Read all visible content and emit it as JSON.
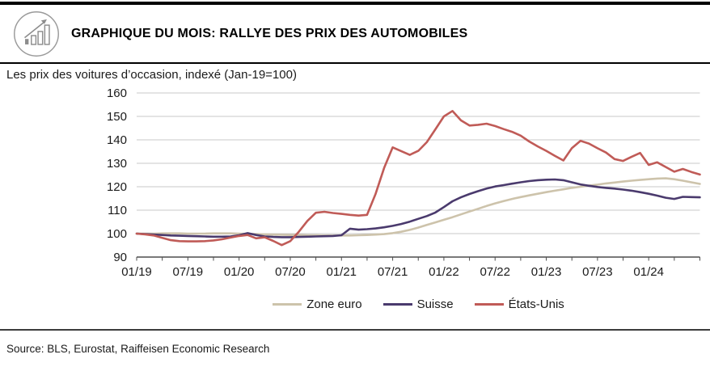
{
  "header": {
    "title": "GRAPHIQUE DU MOIS: RALLYE DES PRIX DES AUTOMOBILES",
    "icon": "bar-chart-rising-arrow"
  },
  "footer": {
    "source": "Source: BLS, Eurostat, Raiffeisen Economic Research"
  },
  "chart_data": {
    "type": "line",
    "title": "Les prix des voitures d’occasion, indexé (Jan-19=100)",
    "x_start": "01/19",
    "x_end": "07/24",
    "x_frequency": "monthly",
    "x_tick_labels": [
      "01/19",
      "07/19",
      "01/20",
      "07/20",
      "01/21",
      "07/21",
      "01/22",
      "07/22",
      "01/23",
      "07/23",
      "01/24"
    ],
    "ylim": [
      90,
      160
    ],
    "y_ticks": [
      90,
      100,
      110,
      120,
      130,
      140,
      150,
      160
    ],
    "grid": "horizontal",
    "legend_position": "bottom",
    "axis_color": "#4d4d4d",
    "grid_color": "#c9c9c9",
    "series": [
      {
        "name": "Zone euro",
        "color": "#cdc3ab",
        "values": [
          100,
          100,
          100,
          100.1,
          100.1,
          100.1,
          100,
          100,
          100,
          100.1,
          100.1,
          100.1,
          100,
          99.9,
          99.8,
          99.7,
          99.6,
          99.5,
          99.4,
          99.4,
          99.3,
          99.3,
          99.2,
          99.2,
          99.2,
          99.2,
          99.3,
          99.4,
          99.6,
          99.8,
          100.2,
          100.8,
          101.6,
          102.6,
          103.7,
          104.8,
          105.9,
          107,
          108.2,
          109.4,
          110.6,
          111.8,
          112.9,
          113.9,
          114.8,
          115.6,
          116.3,
          117,
          117.7,
          118.3,
          118.9,
          119.5,
          120,
          120.5,
          120.9,
          121.4,
          121.8,
          122.2,
          122.6,
          122.9,
          123.2,
          123.5,
          123.6,
          123.2,
          122.6,
          121.9,
          121.2
        ]
      },
      {
        "name": "Suisse",
        "color": "#4a3a6d",
        "values": [
          100,
          99.8,
          99.6,
          99.4,
          99.2,
          99.1,
          99,
          98.9,
          98.8,
          98.7,
          98.7,
          98.8,
          99.3,
          100.2,
          99.4,
          98.8,
          98.6,
          98.5,
          98.5,
          98.6,
          98.7,
          98.8,
          98.9,
          99,
          99.3,
          102.1,
          101.7,
          101.9,
          102.2,
          102.7,
          103.3,
          104.1,
          105.1,
          106.3,
          107.5,
          109,
          111.3,
          113.8,
          115.5,
          116.9,
          118.1,
          119.2,
          120.1,
          120.7,
          121.3,
          121.9,
          122.4,
          122.8,
          123,
          123.1,
          122.8,
          121.9,
          121,
          120.4,
          119.9,
          119.5,
          119.2,
          118.8,
          118.3,
          117.7,
          117,
          116.2,
          115.3,
          114.8,
          115.7,
          115.6,
          115.5
        ]
      },
      {
        "name": "États-Unis",
        "color": "#c05b57",
        "values": [
          100,
          99.7,
          99.2,
          98.2,
          97.2,
          96.8,
          96.7,
          96.7,
          96.8,
          97.1,
          97.6,
          98.3,
          99,
          99.4,
          98,
          98.4,
          96.9,
          95.1,
          96.8,
          100.8,
          105.4,
          108.9,
          109.3,
          108.8,
          108.4,
          108,
          107.7,
          108,
          117,
          128,
          136.8,
          135.2,
          133.6,
          135.3,
          139,
          144.5,
          150,
          152.3,
          148.3,
          146.1,
          146.4,
          146.9,
          145.9,
          144.6,
          143.4,
          141.8,
          139.3,
          137.2,
          135.3,
          133.2,
          131.2,
          136.5,
          139.6,
          138.4,
          136.4,
          134.6,
          131.8,
          131,
          132.8,
          134.4,
          129.3,
          130.4,
          128.4,
          126.4,
          127.6,
          126.3,
          125.2
        ]
      }
    ]
  }
}
